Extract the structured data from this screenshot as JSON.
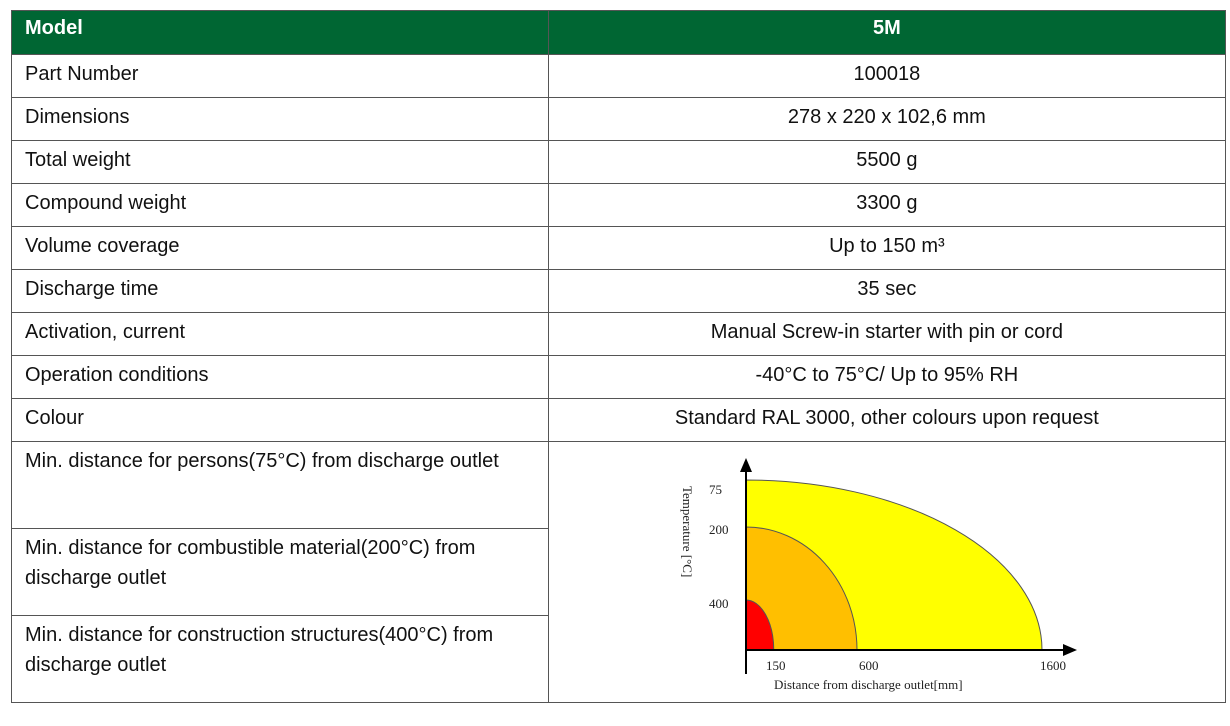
{
  "table": {
    "header": {
      "label": "Model",
      "value": "5M"
    },
    "rows": [
      {
        "label": "Part Number",
        "value": "100018"
      },
      {
        "label": "Dimensions",
        "value": "278 x 220 x 102,6 mm"
      },
      {
        "label": "Total weight",
        "value": "5500 g"
      },
      {
        "label": "Compound weight",
        "value": "3300 g"
      },
      {
        "label": "Volume coverage",
        "value": "Up to 150 m³"
      },
      {
        "label": "Discharge time",
        "value": "35 sec"
      },
      {
        "label": "Activation, current",
        "value": "Manual Screw-in starter with pin or cord"
      },
      {
        "label": "Operation conditions",
        "value": "-40°C to 75°C/ Up to 95% RH"
      },
      {
        "label": "Colour",
        "value": "Standard RAL 3000, other colours upon request"
      }
    ],
    "distance_rows": [
      {
        "label": "Min. distance for persons(75°C) from discharge outlet"
      },
      {
        "label": "Min. distance for combustible material(200°C) from discharge outlet"
      },
      {
        "label": "Min. distance for construction structures(400°C) from discharge outlet"
      }
    ]
  },
  "chart_data": {
    "type": "area",
    "xlabel": "Distance from discharge outlet[mm]",
    "ylabel": "Temperature [°C]",
    "x_ticks": [
      "150",
      "600",
      "1600"
    ],
    "y_ticks": [
      "75",
      "200",
      "400"
    ],
    "zones": [
      {
        "temperature": 75,
        "distance": 1600,
        "color": "#ffff00"
      },
      {
        "temperature": 200,
        "distance": 600,
        "color": "#ffbf00"
      },
      {
        "temperature": 400,
        "distance": 150,
        "color": "#ff0000"
      }
    ]
  }
}
